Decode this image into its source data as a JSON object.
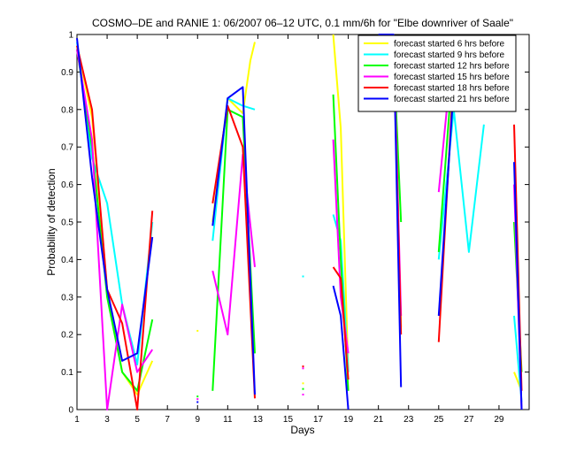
{
  "chart_data": {
    "type": "line",
    "title": "COSMO–DE and RANIE 1: 06/2007 06–12 UTC, 0.1 mm/6h for \"Elbe downriver of Saale\"",
    "xlabel": "Days",
    "ylabel": "Probability of detection",
    "xlim": [
      1,
      31
    ],
    "ylim": [
      0,
      1
    ],
    "x_ticks": [
      1,
      3,
      5,
      7,
      9,
      11,
      13,
      15,
      17,
      19,
      21,
      23,
      25,
      27,
      29
    ],
    "y_ticks": [
      0,
      0.1,
      0.2,
      0.3,
      0.4,
      0.5,
      0.6,
      0.7,
      0.8,
      0.9,
      1
    ],
    "grid": false,
    "legend_position": "top-right",
    "series": [
      {
        "name": "forecast started 6 hrs before",
        "color": "#ffff00",
        "points": [
          [
            1,
            0.97
          ],
          [
            2,
            0.78
          ],
          [
            3,
            0.32
          ],
          [
            4,
            0.1
          ],
          [
            5,
            0.04
          ],
          [
            6,
            0.13
          ],
          null,
          [
            10,
            0.5
          ],
          [
            11,
            0.83
          ],
          [
            12,
            0.79
          ],
          [
            12.5,
            0.93
          ],
          [
            12.8,
            0.98
          ],
          null,
          [
            18,
            1.0
          ],
          [
            18.5,
            0.75
          ],
          [
            19,
            0.1
          ],
          null,
          [
            22,
            1.0
          ],
          [
            22.5,
            0.22
          ],
          null,
          [
            26,
            0.9
          ],
          [
            27,
            0.8
          ],
          [
            28,
            0.82
          ],
          null,
          [
            30,
            0.1
          ],
          [
            30.5,
            0.05
          ]
        ]
      },
      {
        "name": "forecast started 9 hrs before",
        "color": "#00ffff",
        "points": [
          [
            1,
            0.98
          ],
          [
            2,
            0.67
          ],
          [
            3,
            0.55
          ],
          [
            4,
            0.28
          ],
          [
            5,
            0.12
          ],
          [
            6,
            0.5
          ],
          null,
          [
            10,
            0.45
          ],
          [
            11,
            0.83
          ],
          [
            12,
            0.81
          ],
          [
            12.8,
            0.8
          ],
          null,
          [
            18,
            0.52
          ],
          [
            18.5,
            0.45
          ],
          [
            19,
            0.1
          ],
          null,
          [
            21,
            1.0
          ],
          [
            22,
            0.99
          ],
          [
            22.5,
            0.9
          ],
          null,
          [
            25,
            0.4
          ],
          [
            26,
            0.8
          ],
          [
            27,
            0.42
          ],
          [
            28,
            0.76
          ],
          null,
          [
            30,
            0.25
          ],
          [
            30.5,
            0.02
          ]
        ]
      },
      {
        "name": "forecast started 12 hrs before",
        "color": "#00ff00",
        "points": [
          [
            1,
            0.96
          ],
          [
            2,
            0.7
          ],
          [
            3,
            0.3
          ],
          [
            4,
            0.1
          ],
          [
            5,
            0.05
          ],
          [
            6,
            0.24
          ],
          null,
          [
            10,
            0.05
          ],
          [
            11,
            0.8
          ],
          [
            12,
            0.78
          ],
          [
            12.8,
            0.15
          ],
          null,
          [
            18,
            0.84
          ],
          [
            18.5,
            0.4
          ],
          [
            19,
            0.05
          ],
          null,
          [
            21,
            0.89
          ],
          [
            22,
            0.96
          ],
          [
            22.5,
            0.5
          ],
          null,
          [
            25,
            0.42
          ],
          [
            26,
            0.95
          ],
          [
            27,
            0.98
          ],
          [
            28,
            0.9
          ],
          null,
          [
            30,
            0.5
          ],
          [
            30.5,
            0.1
          ]
        ]
      },
      {
        "name": "forecast started 15 hrs before",
        "color": "#ff00ff",
        "points": [
          [
            1,
            0.96
          ],
          [
            2,
            0.72
          ],
          [
            3,
            0.0
          ],
          [
            4,
            0.28
          ],
          [
            5,
            0.1
          ],
          [
            6,
            0.16
          ],
          null,
          [
            10,
            0.37
          ],
          [
            11,
            0.2
          ],
          [
            12,
            0.68
          ],
          [
            12.8,
            0.38
          ],
          null,
          [
            18,
            0.72
          ],
          [
            18.5,
            0.3
          ],
          [
            19,
            0.15
          ],
          null,
          [
            21,
            0.95
          ],
          [
            22,
            0.99
          ],
          [
            22.5,
            0.25
          ],
          null,
          [
            25,
            0.58
          ],
          [
            26,
            0.99
          ],
          [
            27,
            0.97
          ],
          [
            28,
            0.85
          ],
          null,
          [
            30,
            0.6
          ],
          [
            30.5,
            0.0
          ]
        ]
      },
      {
        "name": "forecast started 18 hrs before",
        "color": "#ff0000",
        "points": [
          [
            1,
            0.97
          ],
          [
            2,
            0.8
          ],
          [
            3,
            0.32
          ],
          [
            4,
            0.23
          ],
          [
            5,
            0.0
          ],
          [
            6,
            0.53
          ],
          null,
          [
            10,
            0.55
          ],
          [
            11,
            0.81
          ],
          [
            12,
            0.7
          ],
          [
            12.8,
            0.03
          ],
          null,
          [
            18,
            0.38
          ],
          [
            18.5,
            0.35
          ],
          [
            19,
            0.08
          ],
          null,
          [
            21,
            0.99
          ],
          [
            22,
            0.98
          ],
          [
            22.5,
            0.2
          ],
          null,
          [
            25,
            0.18
          ],
          [
            26,
            0.9
          ],
          [
            27,
            0.98
          ],
          [
            28,
            0.81
          ],
          null,
          [
            30,
            0.76
          ],
          [
            30.5,
            0.05
          ]
        ]
      },
      {
        "name": "forecast started 21 hrs before",
        "color": "#0000ff",
        "points": [
          [
            1,
            0.99
          ],
          [
            2,
            0.62
          ],
          [
            3,
            0.32
          ],
          [
            4,
            0.13
          ],
          [
            5,
            0.15
          ],
          [
            6,
            0.46
          ],
          null,
          [
            10,
            0.49
          ],
          [
            11,
            0.83
          ],
          [
            12,
            0.86
          ],
          [
            12.8,
            0.04
          ],
          null,
          [
            18,
            0.33
          ],
          [
            18.5,
            0.25
          ],
          [
            19,
            0.0
          ],
          null,
          [
            21,
            1.0
          ],
          [
            22,
            1.0
          ],
          [
            22.5,
            0.06
          ],
          null,
          [
            25,
            0.25
          ],
          [
            26,
            0.86
          ],
          [
            27,
            0.96
          ],
          [
            28,
            0.91
          ],
          null,
          [
            30,
            0.66
          ],
          [
            30.5,
            0.0
          ]
        ]
      }
    ],
    "isolated_points": [
      {
        "x": 9,
        "y": 0.035,
        "color": "#00ff00"
      },
      {
        "x": 9,
        "y": 0.028,
        "color": "#ff00ff"
      },
      {
        "x": 9,
        "y": 0.02,
        "color": "#0000ff"
      },
      {
        "x": 9,
        "y": 0.21,
        "color": "#ffff00"
      },
      {
        "x": 16,
        "y": 0.355,
        "color": "#00ffff"
      },
      {
        "x": 16,
        "y": 0.115,
        "color": "#ff0000"
      },
      {
        "x": 16,
        "y": 0.11,
        "color": "#ff00ff"
      },
      {
        "x": 16,
        "y": 0.07,
        "color": "#ffff00"
      },
      {
        "x": 16,
        "y": 0.055,
        "color": "#00ff00"
      },
      {
        "x": 16,
        "y": 0.04,
        "color": "#ff00ff"
      }
    ]
  }
}
